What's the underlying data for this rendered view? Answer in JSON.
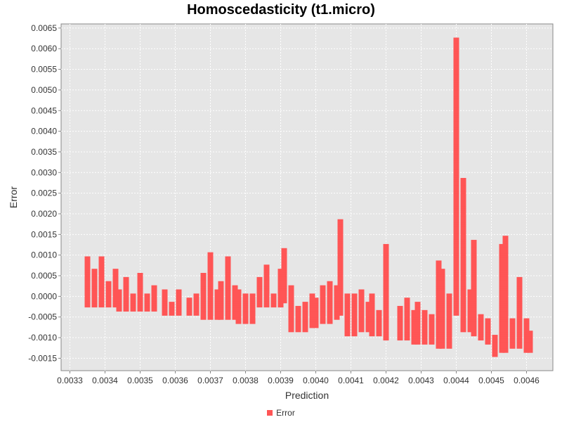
{
  "chart_data": {
    "type": "scatter",
    "title": "Homoscedasticity (t1.micro)",
    "xlabel": "Prediction",
    "ylabel": "Error",
    "xlim": [
      0.003275,
      0.004675
    ],
    "ylim": [
      -0.0018,
      0.0066
    ],
    "x_ticks": [
      "0.0033",
      "0.0034",
      "0.0035",
      "0.0036",
      "0.0037",
      "0.0038",
      "0.0039",
      "0.0040",
      "0.0041",
      "0.0042",
      "0.0043",
      "0.0044",
      "0.0045",
      "0.0046"
    ],
    "y_ticks": [
      "-0.0015",
      "-0.0010",
      "-0.0005",
      "0.0000",
      "0.0005",
      "0.0010",
      "0.0015",
      "0.0020",
      "0.0025",
      "0.0030",
      "0.0035",
      "0.0040",
      "0.0045",
      "0.0050",
      "0.0055",
      "0.0060",
      "0.0065"
    ],
    "grid": true,
    "legend_position": "bottom",
    "background": "#e6e6e6",
    "series": [
      {
        "name": "Error",
        "color": "#ff5555",
        "clusters": [
          {
            "x": 0.00335,
            "y_min": -0.0002,
            "y_max": 0.0009
          },
          {
            "x": 0.00337,
            "y_min": -0.0002,
            "y_max": 0.0006
          },
          {
            "x": 0.00339,
            "y_min": -0.0002,
            "y_max": 0.0009
          },
          {
            "x": 0.00341,
            "y_min": -0.0002,
            "y_max": 0.0003
          },
          {
            "x": 0.00343,
            "y_min": -0.0002,
            "y_max": 0.0006
          },
          {
            "x": 0.00344,
            "y_min": -0.0003,
            "y_max": 0.0001
          },
          {
            "x": 0.00346,
            "y_min": -0.0003,
            "y_max": 0.0004
          },
          {
            "x": 0.00348,
            "y_min": -0.0003,
            "y_max": 0.0
          },
          {
            "x": 0.0035,
            "y_min": -0.0003,
            "y_max": 0.0005
          },
          {
            "x": 0.00352,
            "y_min": -0.0003,
            "y_max": 0.0
          },
          {
            "x": 0.00354,
            "y_min": -0.0003,
            "y_max": 0.0002
          },
          {
            "x": 0.00357,
            "y_min": -0.0004,
            "y_max": 0.0001
          },
          {
            "x": 0.00359,
            "y_min": -0.0004,
            "y_max": -0.0002
          },
          {
            "x": 0.00361,
            "y_min": -0.0004,
            "y_max": 0.0001
          },
          {
            "x": 0.00364,
            "y_min": -0.0004,
            "y_max": -0.0001
          },
          {
            "x": 0.00366,
            "y_min": -0.0004,
            "y_max": 0.0
          },
          {
            "x": 0.00368,
            "y_min": -0.0005,
            "y_max": 0.0005
          },
          {
            "x": 0.0037,
            "y_min": -0.0005,
            "y_max": 0.001
          },
          {
            "x": 0.00372,
            "y_min": -0.0005,
            "y_max": 0.0001
          },
          {
            "x": 0.00373,
            "y_min": -0.0005,
            "y_max": 0.0003
          },
          {
            "x": 0.00375,
            "y_min": -0.0005,
            "y_max": 0.0009
          },
          {
            "x": 0.00377,
            "y_min": -0.0005,
            "y_max": 0.0002
          },
          {
            "x": 0.00378,
            "y_min": -0.0006,
            "y_max": 0.0001
          },
          {
            "x": 0.0038,
            "y_min": -0.0006,
            "y_max": 0.0
          },
          {
            "x": 0.00382,
            "y_min": -0.0006,
            "y_max": 0.0
          },
          {
            "x": 0.00384,
            "y_min": -0.0002,
            "y_max": 0.0004
          },
          {
            "x": 0.00386,
            "y_min": -0.0002,
            "y_max": 0.0007
          },
          {
            "x": 0.00388,
            "y_min": -0.0002,
            "y_max": 0.0
          },
          {
            "x": 0.0039,
            "y_min": -0.0002,
            "y_max": 0.0006
          },
          {
            "x": 0.00391,
            "y_min": -0.0001,
            "y_max": 0.0011
          },
          {
            "x": 0.00393,
            "y_min": -0.0008,
            "y_max": 0.0002
          },
          {
            "x": 0.00395,
            "y_min": -0.0008,
            "y_max": -0.0003
          },
          {
            "x": 0.00397,
            "y_min": -0.0008,
            "y_max": -0.0002
          },
          {
            "x": 0.00399,
            "y_min": -0.0007,
            "y_max": 0.0
          },
          {
            "x": 0.004,
            "y_min": -0.0007,
            "y_max": -0.0001
          },
          {
            "x": 0.00402,
            "y_min": -0.0006,
            "y_max": 0.0002
          },
          {
            "x": 0.00404,
            "y_min": -0.0006,
            "y_max": 0.0003
          },
          {
            "x": 0.00406,
            "y_min": -0.0005,
            "y_max": 0.0002
          },
          {
            "x": 0.00407,
            "y_min": -0.0004,
            "y_max": 0.0018
          },
          {
            "x": 0.00409,
            "y_min": -0.0009,
            "y_max": 0.0
          },
          {
            "x": 0.00411,
            "y_min": -0.0009,
            "y_max": 0.0
          },
          {
            "x": 0.00413,
            "y_min": -0.0008,
            "y_max": 0.0001
          },
          {
            "x": 0.00415,
            "y_min": -0.0008,
            "y_max": -0.0002
          },
          {
            "x": 0.00416,
            "y_min": -0.0009,
            "y_max": 0.0
          },
          {
            "x": 0.00418,
            "y_min": -0.0009,
            "y_max": -0.0004
          },
          {
            "x": 0.0042,
            "y_min": -0.001,
            "y_max": 0.0012
          },
          {
            "x": 0.00424,
            "y_min": -0.001,
            "y_max": -0.0003
          },
          {
            "x": 0.00426,
            "y_min": -0.001,
            "y_max": -0.0001
          },
          {
            "x": 0.00428,
            "y_min": -0.0011,
            "y_max": -0.0004
          },
          {
            "x": 0.00429,
            "y_min": -0.0011,
            "y_max": -0.0002
          },
          {
            "x": 0.00431,
            "y_min": -0.0011,
            "y_max": -0.0004
          },
          {
            "x": 0.00433,
            "y_min": -0.0011,
            "y_max": -0.0005
          },
          {
            "x": 0.00435,
            "y_min": -0.0012,
            "y_max": 0.0008
          },
          {
            "x": 0.00436,
            "y_min": -0.0012,
            "y_max": 0.0006
          },
          {
            "x": 0.00438,
            "y_min": -0.0012,
            "y_max": 0.0
          },
          {
            "x": 0.0044,
            "y_min": -0.0004,
            "y_max": 0.0062
          },
          {
            "x": 0.00442,
            "y_min": -0.0008,
            "y_max": 0.0028
          },
          {
            "x": 0.00444,
            "y_min": -0.0008,
            "y_max": 0.0001
          },
          {
            "x": 0.00445,
            "y_min": -0.0009,
            "y_max": 0.0013
          },
          {
            "x": 0.00447,
            "y_min": -0.001,
            "y_max": -0.0005
          },
          {
            "x": 0.00449,
            "y_min": -0.0011,
            "y_max": -0.0006
          },
          {
            "x": 0.00451,
            "y_min": -0.0014,
            "y_max": -0.001
          },
          {
            "x": 0.00453,
            "y_min": -0.0013,
            "y_max": 0.0012
          },
          {
            "x": 0.00454,
            "y_min": -0.0013,
            "y_max": 0.0014
          },
          {
            "x": 0.00456,
            "y_min": -0.0012,
            "y_max": -0.0006
          },
          {
            "x": 0.00458,
            "y_min": -0.0012,
            "y_max": 0.0004
          },
          {
            "x": 0.0046,
            "y_min": -0.0013,
            "y_max": -0.0006
          },
          {
            "x": 0.00461,
            "y_min": -0.0013,
            "y_max": -0.0009
          }
        ]
      }
    ]
  }
}
